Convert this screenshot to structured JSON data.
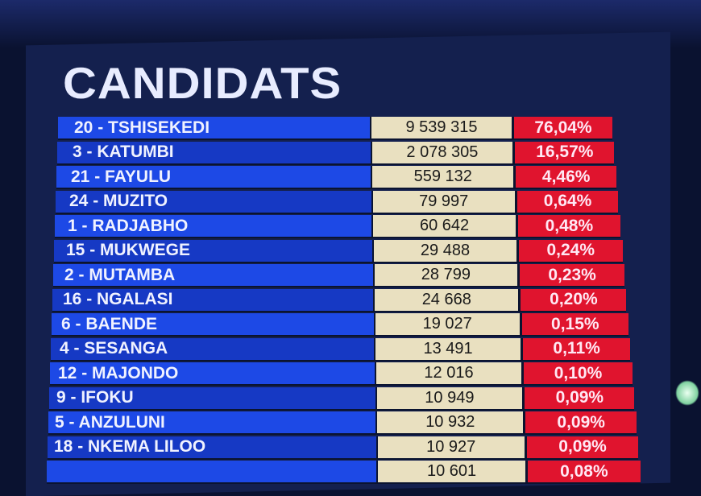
{
  "title": "CANDIDATS",
  "rows": [
    {
      "name": "20 - TSHISEKEDI",
      "votes": "9 539 315",
      "pct": "76,04%"
    },
    {
      "name": "3 - KATUMBI",
      "votes": "2 078 305",
      "pct": "16,57%"
    },
    {
      "name": "21 - FAYULU",
      "votes": "559 132",
      "pct": "4,46%"
    },
    {
      "name": "24 - MUZITO",
      "votes": "79 997",
      "pct": "0,64%"
    },
    {
      "name": "1 - RADJABHO",
      "votes": "60 642",
      "pct": "0,48%"
    },
    {
      "name": "15 - MUKWEGE",
      "votes": "29 488",
      "pct": "0,24%"
    },
    {
      "name": "2 - MUTAMBA",
      "votes": "28 799",
      "pct": "0,23%"
    },
    {
      "name": "16 - NGALASI",
      "votes": "24 668",
      "pct": "0,20%"
    },
    {
      "name": "6 - BAENDE",
      "votes": "19 027",
      "pct": "0,15%"
    },
    {
      "name": "4 - SESANGA",
      "votes": "13 491",
      "pct": "0,11%"
    },
    {
      "name": "12 - MAJONDO",
      "votes": "12 016",
      "pct": "0,10%"
    },
    {
      "name": "9 - IFOKU",
      "votes": "10 949",
      "pct": "0,09%"
    },
    {
      "name": "5 - ANZULUNI",
      "votes": "10 932",
      "pct": "0,09%"
    },
    {
      "name": "18 - NKEMA LILOO",
      "votes": "10 927",
      "pct": "0,09%"
    },
    {
      "name": "",
      "votes": "10 601",
      "pct": "0,08%"
    }
  ],
  "colors": {
    "name_cell": "#1d49e6",
    "votes_cell": "#e9e0c0",
    "pct_cell": "#e0142e",
    "background": "#0a1230"
  }
}
